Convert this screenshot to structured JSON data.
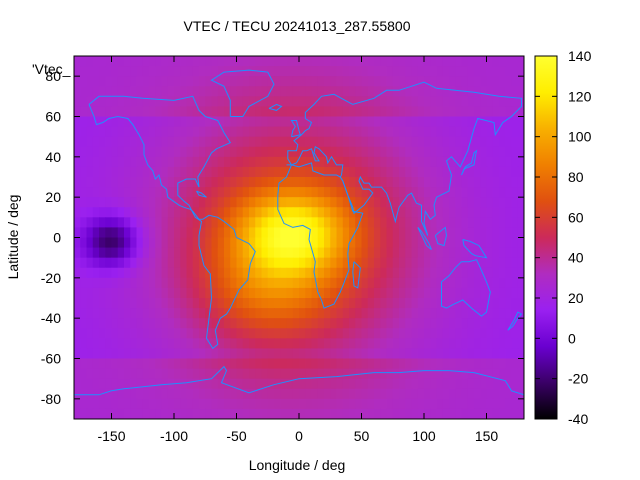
{
  "chart_data": {
    "type": "heatmap",
    "title": "VTEC / TECU 20241013_287.55800",
    "xlabel": "Longitude / deg",
    "ylabel": "Latitude / deg",
    "overlay_label": "'Vtec_",
    "xlim": [
      -180,
      180
    ],
    "ylim": [
      -90,
      90
    ],
    "xticks": [
      -150,
      -100,
      -50,
      0,
      50,
      100,
      150
    ],
    "yticks": [
      -80,
      -60,
      -40,
      -20,
      0,
      20,
      40,
      60,
      80
    ],
    "colorbar": {
      "range": [
        -40,
        140
      ],
      "ticks": [
        -40,
        -20,
        0,
        20,
        40,
        60,
        80,
        100,
        120,
        140
      ],
      "palette": [
        "#000000",
        "#3a0066",
        "#6a00d0",
        "#9a20f0",
        "#b02cc0",
        "#cc2a5a",
        "#e05010",
        "#f08000",
        "#f8b000",
        "#ffee00",
        "#ffff30"
      ]
    },
    "features": [
      {
        "name": "equatorial-anomaly-peak",
        "lon": -5,
        "lat": 2,
        "value": 130
      },
      {
        "name": "southern-crest",
        "lon": -25,
        "lat": -25,
        "value": 90
      },
      {
        "name": "pacific-minimum",
        "lon": -150,
        "lat": -2,
        "value": -30
      },
      {
        "name": "background",
        "value": 15
      }
    ],
    "grid": false,
    "coastlines": true,
    "coastline_color": "#1e90ff"
  }
}
